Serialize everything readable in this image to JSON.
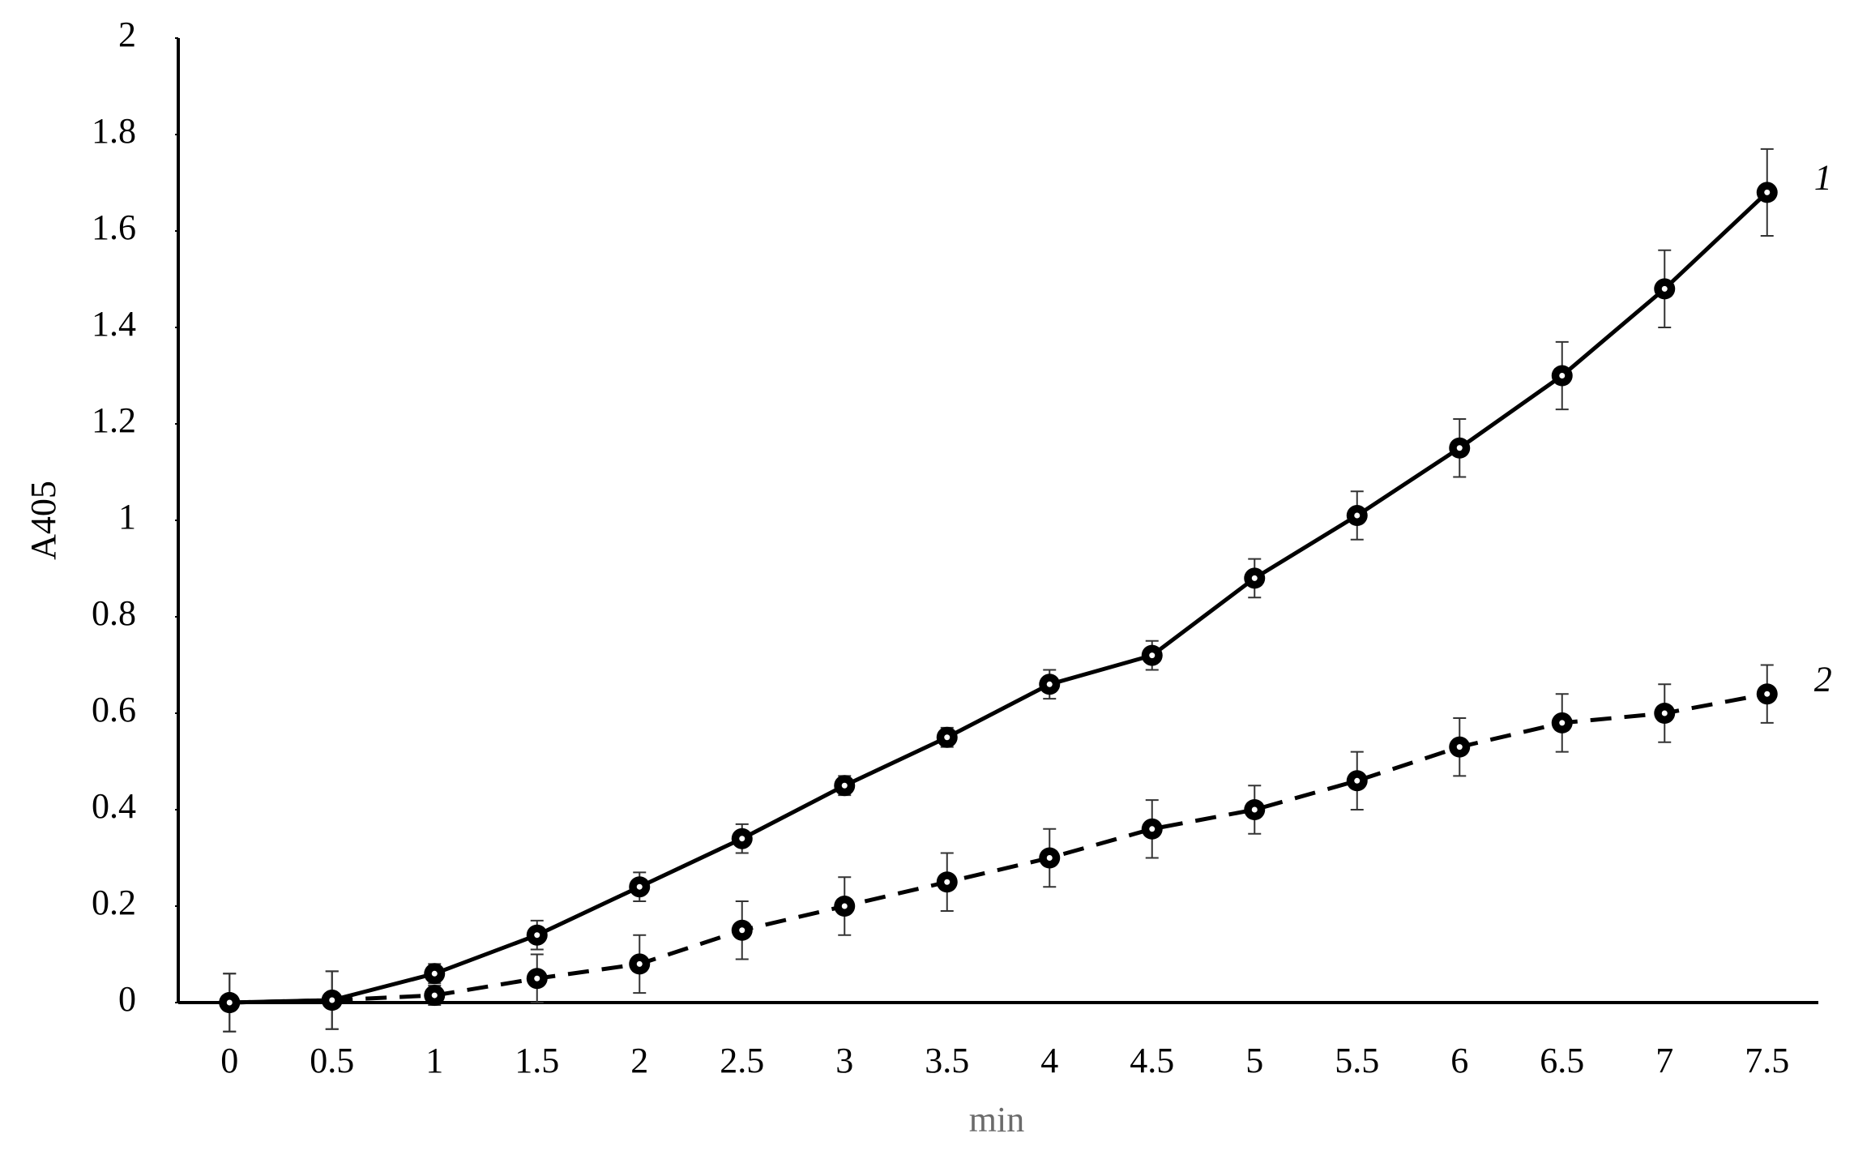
{
  "chart_data": {
    "type": "line",
    "categories": [
      "0",
      "0.5",
      "1",
      "1.5",
      "2",
      "2.5",
      "3",
      "3.5",
      "4",
      "4.5",
      "5",
      "5.5",
      "6",
      "6.5",
      "7",
      "7.5"
    ],
    "series": [
      {
        "name": "1",
        "color": "#000000",
        "dash": false,
        "values": [
          0,
          0.005,
          0.06,
          0.14,
          0.24,
          0.34,
          0.45,
          0.55,
          0.66,
          0.72,
          0.88,
          1.01,
          1.15,
          1.3,
          1.48,
          1.68
        ],
        "errors": [
          0.06,
          0.06,
          0.02,
          0.03,
          0.03,
          0.03,
          0.02,
          0.02,
          0.03,
          0.03,
          0.04,
          0.05,
          0.06,
          0.07,
          0.08,
          0.09
        ]
      },
      {
        "name": "2",
        "color": "#000000",
        "dash": true,
        "values": [
          0,
          0.005,
          0.015,
          0.05,
          0.08,
          0.15,
          0.2,
          0.25,
          0.3,
          0.36,
          0.4,
          0.46,
          0.53,
          0.58,
          0.6,
          0.64
        ],
        "errors": [
          0.06,
          0.06,
          0.02,
          0.05,
          0.06,
          0.06,
          0.06,
          0.06,
          0.06,
          0.06,
          0.05,
          0.06,
          0.06,
          0.06,
          0.06,
          0.06
        ]
      }
    ],
    "ylim": [
      0,
      2
    ],
    "yticks": [
      0,
      0.2,
      0.4,
      0.6,
      0.8,
      1,
      1.2,
      1.4,
      1.6,
      1.8,
      2
    ],
    "ylabel": "A405",
    "xlabel": "min",
    "grid": false
  }
}
